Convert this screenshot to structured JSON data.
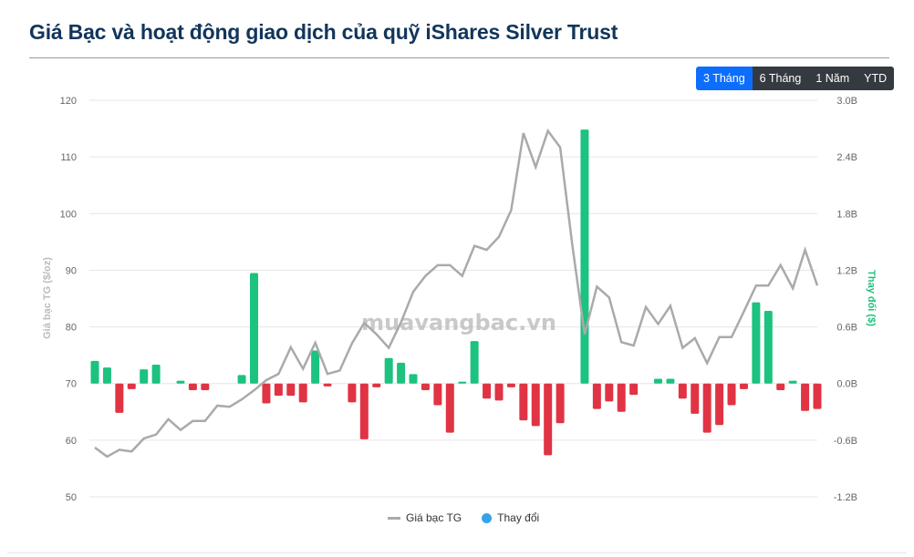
{
  "title": "Giá Bạc và hoạt động giao dịch của quỹ iShares Silver Trust",
  "range_buttons": [
    {
      "label": "3 Tháng",
      "active": true
    },
    {
      "label": "6 Tháng",
      "active": false
    },
    {
      "label": "1 Năm",
      "active": false
    },
    {
      "label": "YTD",
      "active": false
    }
  ],
  "watermark": "muavangbac.vn",
  "colors": {
    "line": "#aaaaaa",
    "positive": "#1cc27f",
    "negative": "#e03444",
    "legend_bar": "#36a2eb",
    "right_axis_title": "#1cc27f"
  },
  "chart_data": {
    "type": "bar+line",
    "title": "Giá Bạc và hoạt động giao dịch của quỹ iShares Silver Trust",
    "ylabel": "Giá bạc TG ($/oz)",
    "ylabel_right": "Thay đổi ($)",
    "ylim": [
      50,
      120
    ],
    "yticks": [
      "50",
      "60",
      "70",
      "80",
      "90",
      "100",
      "110",
      "120"
    ],
    "ylim_right": [
      -1.2,
      3.0
    ],
    "yticks_right": [
      "-1.2B",
      "-0.6B",
      "0.0B",
      "0.6B",
      "1.2B",
      "1.8B",
      "2.4B",
      "3.0B"
    ],
    "grid": true,
    "legend": "bottom",
    "series": [
      {
        "name": "Giá bạc TG",
        "type": "line",
        "values": [
          58.7,
          57.1,
          58.3,
          58.0,
          60.3,
          61.0,
          63.7,
          61.8,
          63.4,
          63.4,
          66.1,
          65.9,
          67.2,
          68.8,
          70.6,
          71.7,
          76.4,
          72.6,
          77.2,
          71.7,
          72.3,
          77.1,
          80.7,
          78.7,
          76.3,
          80.8,
          86.2,
          89.0,
          90.9,
          90.9,
          89.0,
          94.3,
          93.6,
          95.9,
          100.6,
          114.2,
          108.2,
          114.6,
          111.7,
          94.3,
          78.7,
          87.1,
          85.2,
          77.3,
          76.7,
          83.5,
          80.5,
          83.7,
          76.3,
          78.0,
          73.6,
          78.2,
          78.2,
          82.7,
          87.3,
          87.3,
          90.9,
          86.8,
          93.6,
          87.3
        ]
      },
      {
        "name": "Thay đổi",
        "type": "bar",
        "unit": "B",
        "values": [
          0.24,
          0.17,
          -0.31,
          -0.06,
          0.15,
          0.2,
          0,
          0.03,
          -0.07,
          -0.07,
          0,
          0,
          0.09,
          1.17,
          -0.21,
          -0.13,
          -0.13,
          -0.2,
          0.35,
          -0.03,
          0,
          -0.2,
          -0.59,
          -0.04,
          0.27,
          0.22,
          0.1,
          -0.07,
          -0.23,
          -0.52,
          0.02,
          0.45,
          -0.16,
          -0.18,
          -0.04,
          -0.39,
          -0.45,
          -0.76,
          -0.42,
          0,
          2.69,
          -0.27,
          -0.19,
          -0.3,
          -0.12,
          0,
          0.05,
          0.05,
          -0.16,
          -0.32,
          -0.52,
          -0.44,
          -0.23,
          -0.06,
          0.86,
          0.77,
          -0.07,
          0.03,
          -0.29,
          -0.27
        ]
      }
    ]
  }
}
